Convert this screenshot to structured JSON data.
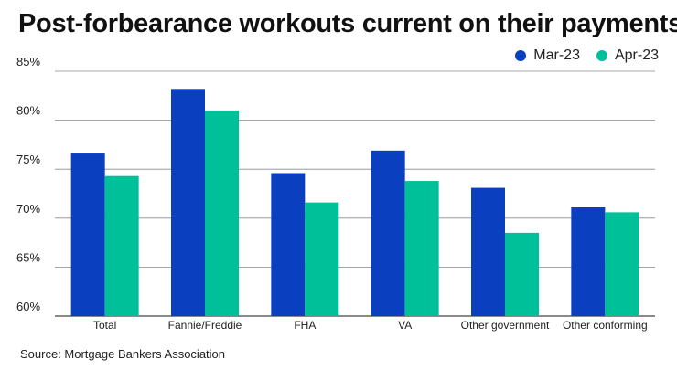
{
  "title": "Post-forbearance workouts current on their payments",
  "source": "Source: Mortgage Bankers Association",
  "chart_data": {
    "type": "bar",
    "categories": [
      "Total",
      "Fannie/Freddie",
      "FHA",
      "VA",
      "Other government",
      "Other conforming"
    ],
    "series": [
      {
        "name": "Mar-23",
        "color": "#0a3fc0",
        "values": [
          76.6,
          83.2,
          74.6,
          76.9,
          73.1,
          71.1
        ]
      },
      {
        "name": "Apr-23",
        "color": "#00c09a",
        "values": [
          74.3,
          81.0,
          71.6,
          73.8,
          68.5,
          70.6
        ]
      }
    ],
    "ylim": [
      60,
      85
    ],
    "yticks": [
      60,
      65,
      70,
      75,
      80,
      85
    ],
    "ytick_labels": [
      "60%",
      "65%",
      "70%",
      "75%",
      "80%",
      "85%"
    ],
    "grid": true,
    "legend": "top-right",
    "xlabel": "",
    "ylabel": ""
  }
}
